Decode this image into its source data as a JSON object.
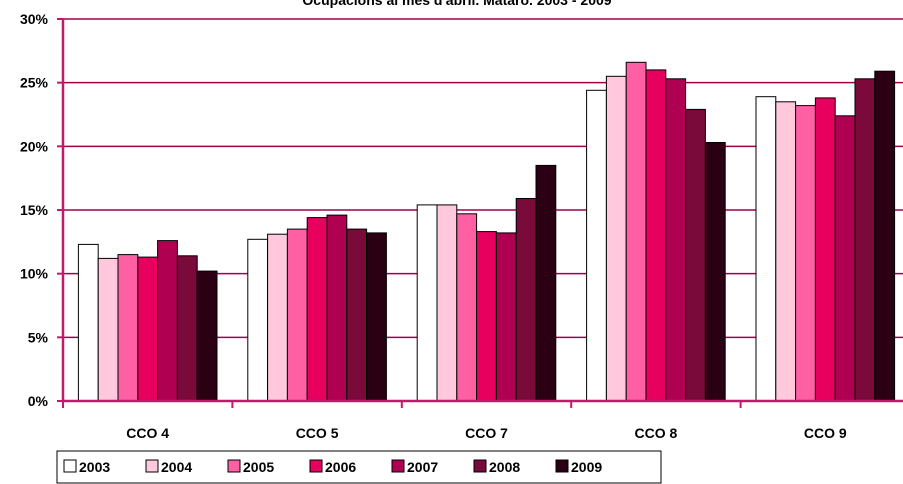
{
  "chart_data": {
    "type": "bar",
    "title": "Ocupacions al mes d'abril. Mataró. 2003 - 2009",
    "xlabel": "",
    "ylabel": "",
    "categories": [
      "CCO 4",
      "CCO 5",
      "CCO 7",
      "CCO 8",
      "CCO 9"
    ],
    "y_ticks": [
      "0%",
      "5%",
      "10%",
      "15%",
      "20%",
      "25%",
      "30%"
    ],
    "ylim": [
      0,
      30
    ],
    "grid": true,
    "legend_position": "bottom",
    "series": [
      {
        "name": "2003",
        "color": "#ffffff",
        "values": [
          12.3,
          12.7,
          15.4,
          24.4,
          23.9
        ]
      },
      {
        "name": "2004",
        "color": "#ffc8dc",
        "values": [
          11.2,
          13.1,
          15.4,
          25.5,
          23.5
        ]
      },
      {
        "name": "2005",
        "color": "#ff5fa3",
        "values": [
          11.5,
          13.5,
          14.7,
          26.6,
          23.2
        ]
      },
      {
        "name": "2006",
        "color": "#e8005f",
        "values": [
          11.3,
          14.4,
          13.3,
          26.0,
          23.8
        ]
      },
      {
        "name": "2007",
        "color": "#b00052",
        "values": [
          12.6,
          14.6,
          13.2,
          25.3,
          22.4
        ]
      },
      {
        "name": "2008",
        "color": "#7a0a3a",
        "values": [
          11.4,
          13.5,
          15.9,
          22.9,
          25.3
        ]
      },
      {
        "name": "2009",
        "color": "#2b0012",
        "values": [
          10.2,
          13.2,
          18.5,
          20.3,
          25.9
        ]
      }
    ],
    "axis_color": "#c21a6b",
    "gridline_color": "#a0004a"
  }
}
